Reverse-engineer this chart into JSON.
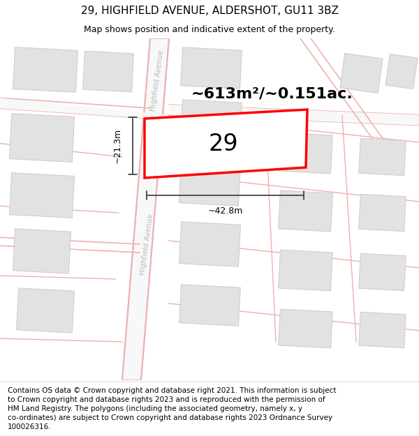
{
  "title": "29, HIGHFIELD AVENUE, ALDERSHOT, GU11 3BZ",
  "subtitle": "Map shows position and indicative extent of the property.",
  "footer": "Contains OS data © Crown copyright and database right 2021. This information is subject\nto Crown copyright and database rights 2023 and is reproduced with the permission of\nHM Land Registry. The polygons (including the associated geometry, namely x, y\nco-ordinates) are subject to Crown copyright and database rights 2023 Ordnance Survey\n100026316.",
  "area_label": "~613m²/~0.151ac.",
  "number_label": "29",
  "width_label": "~42.8m",
  "height_label": "~21.3m",
  "road_label_1": "Highfield Avenue",
  "road_label_2": "Highfield Avenue",
  "plot_outline_color": "#ff0000",
  "building_color": "#e2e2e2",
  "building_edge_color": "#cccccc",
  "road_pink_color": "#f2b8b8",
  "road_fill_color": "#ffffff",
  "dim_line_color": "#444444",
  "road_label_color": "#bbbbbb",
  "title_fontsize": 11,
  "subtitle_fontsize": 9,
  "footer_fontsize": 7.5
}
